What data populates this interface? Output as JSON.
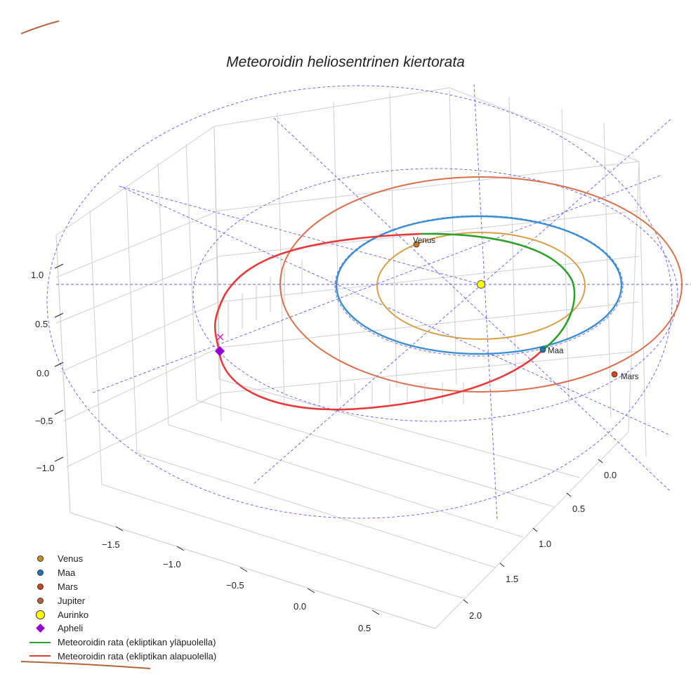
{
  "chart_data": {
    "type": "line",
    "title": "Meteoroidin heliosentrinen kiertorata",
    "xlabel": "",
    "ylabel": "",
    "zlabel": "",
    "x_ticks": [
      "−1.5",
      "−1.0",
      "−0.5",
      "0.0",
      "0.5"
    ],
    "y_ticks": [
      "0.0",
      "0.5",
      "1.0",
      "1.5",
      "2.0"
    ],
    "z_ticks": [
      "1.0",
      "0.5",
      "0.0",
      "−0.5",
      "−1.0"
    ],
    "grid": true,
    "legend_placement": "bottom-left",
    "bodies": [
      {
        "name": "Venus",
        "color": "#c8902a",
        "orbit_radius_au": 0.72,
        "label": "Venus"
      },
      {
        "name": "Maa",
        "color": "#1f77b4",
        "orbit_radius_au": 1.0,
        "label": "Maa"
      },
      {
        "name": "Mars",
        "color": "#d0451b",
        "orbit_radius_au": 1.52,
        "label": "Mars"
      },
      {
        "name": "Jupiter",
        "color": "#b5653c",
        "orbit_radius_au": 5.2
      },
      {
        "name": "Aurinko",
        "color": "#ffff00",
        "orbit_radius_au": 0.0
      }
    ],
    "series": [
      {
        "name": "Meteoroidin rata (ekliptikan yläpuolella)",
        "color": "#2ca02c"
      },
      {
        "name": "Meteoroidin rata (ekliptikan alapuolella)",
        "color": "#e8393a"
      }
    ],
    "aphelion": {
      "name": "Apheli",
      "color": "#9400d3"
    }
  },
  "legend": [
    {
      "label": "Venus",
      "kind": "dot",
      "color": "#c8902a"
    },
    {
      "label": "Maa",
      "kind": "dot",
      "color": "#1f77b4"
    },
    {
      "label": "Mars",
      "kind": "dot",
      "color": "#d0451b"
    },
    {
      "label": "Jupiter",
      "kind": "dot",
      "color": "#b5653c"
    },
    {
      "label": "Aurinko",
      "kind": "bigdot",
      "color": "#ffff00"
    },
    {
      "label": "Apheli",
      "kind": "diamond",
      "color": "#9400d3"
    },
    {
      "label": "Meteoroidin rata (ekliptikan yläpuolella)",
      "kind": "line",
      "color": "#2ca02c"
    },
    {
      "label": "Meteoroidin rata (ekliptikan alapuolella)",
      "kind": "line",
      "color": "#e8393a"
    }
  ]
}
